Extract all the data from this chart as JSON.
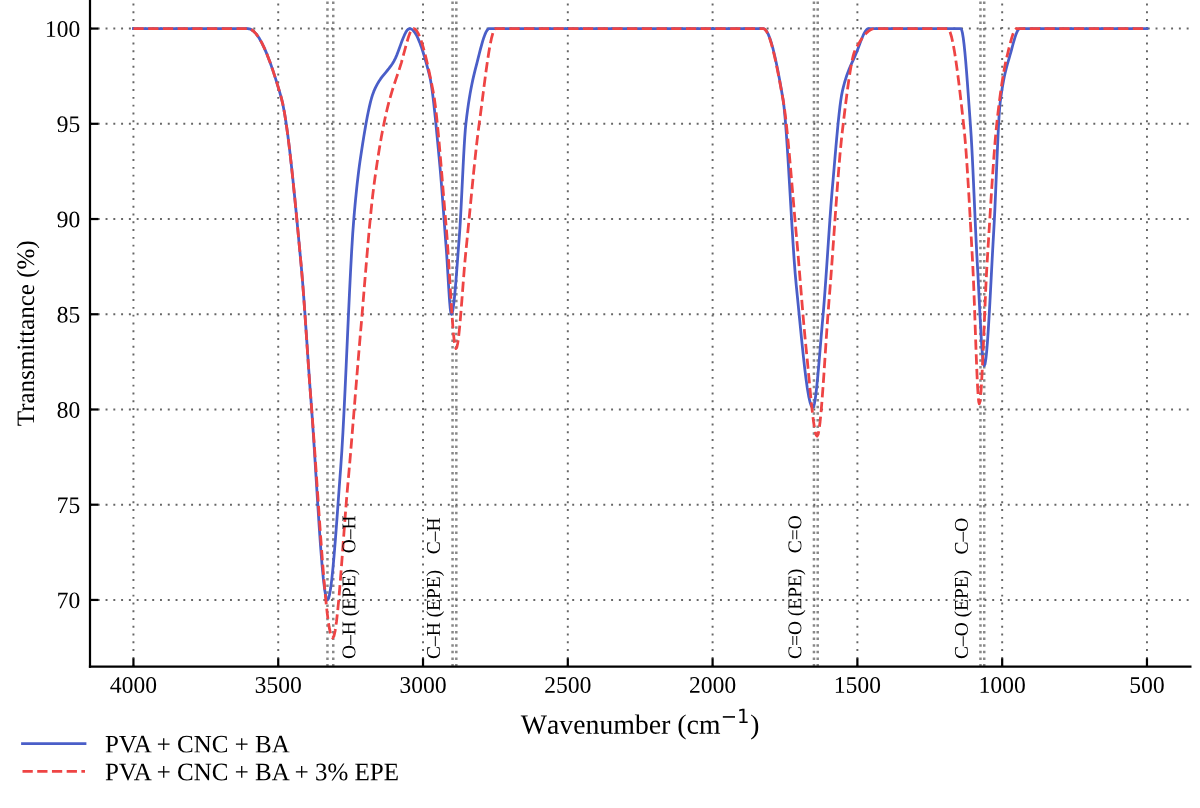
{
  "chart_data": {
    "type": "line",
    "xlabel": "Wavenumber (cm$^{−1}$)",
    "ylabel": "Transmittance (%)",
    "xlim": [
      4150,
      350
    ],
    "ylim": [
      66.5,
      101.5
    ],
    "xticks": [
      4000,
      3500,
      3000,
      2500,
      2000,
      1500,
      1000,
      500
    ],
    "yticks": [
      70,
      75,
      80,
      85,
      90,
      95,
      100
    ],
    "grid": true,
    "legend": "bottom left",
    "series": [
      {
        "name": "PVA + CNC + BA",
        "color": "#4a5ec8",
        "line_style": "solid",
        "x": [
          4000,
          3605,
          3490,
          3421,
          3387,
          3330,
          3284,
          3239,
          3216,
          3170,
          3100,
          3046,
          2977,
          2943,
          2920,
          2902,
          2875,
          2852,
          2817,
          2771,
          1825,
          1757,
          1711,
          1654,
          1620,
          1586,
          1552,
          1507,
          1461,
          1143,
          1109,
          1086,
          1062,
          1029,
          1007,
          973,
          939,
          500
        ],
        "values": [
          100,
          100,
          96.4,
          87.6,
          80.5,
          70,
          77,
          90,
          93.2,
          96.7,
          98.3,
          100,
          97.5,
          93,
          88.5,
          85,
          89,
          95,
          98,
          100,
          100,
          96.3,
          86.5,
          80.1,
          84.7,
          91.7,
          96.7,
          98.6,
          100,
          100,
          94.8,
          87.7,
          82.3,
          89.4,
          96.1,
          98.6,
          100,
          100
        ]
      },
      {
        "name": "PVA + CNC + BA + 3% EPE",
        "color": "#ee4444",
        "line_style": "dashed",
        "x": [
          4000,
          3605,
          3490,
          3421,
          3387,
          3312,
          3260,
          3216,
          3170,
          3125,
          3079,
          3033,
          2965,
          2920,
          2886,
          2852,
          2806,
          2749,
          1825,
          1757,
          1711,
          1677,
          1639,
          1598,
          1552,
          1507,
          1439,
          1189,
          1132,
          1102,
          1079,
          1052,
          1018,
          984,
          950,
          500
        ],
        "values": [
          100,
          100,
          96.4,
          87.6,
          80.5,
          68,
          76,
          84,
          91.7,
          95.7,
          98,
          100,
          96.7,
          89.6,
          83.2,
          88.3,
          95,
          100,
          100,
          96.3,
          89.2,
          83.2,
          78.6,
          85.7,
          94.6,
          98.9,
          100,
          100,
          94.8,
          87.7,
          80.3,
          87.7,
          95.1,
          98.5,
          100,
          100
        ]
      }
    ],
    "ref_lines": [
      {
        "axis": "x",
        "value": 3330,
        "label": "O–H (EPE)",
        "color": "#888888",
        "line_style": "dotted"
      },
      {
        "axis": "x",
        "value": 3310,
        "label": "O–H",
        "color": "#888888",
        "line_style": "dotted"
      },
      {
        "axis": "x",
        "value": 2898,
        "label": "C–H (EPE)",
        "color": "#888888",
        "line_style": "dotted"
      },
      {
        "axis": "x",
        "value": 2885,
        "label": "C–H",
        "color": "#888888",
        "line_style": "dotted"
      },
      {
        "axis": "x",
        "value": 1650,
        "label": "C=O (EPE)",
        "color": "#888888",
        "line_style": "dotted"
      },
      {
        "axis": "x",
        "value": 1637,
        "label": "C=O",
        "color": "#888888",
        "line_style": "dotted"
      },
      {
        "axis": "x",
        "value": 1075,
        "label": "C–O (EPE)",
        "color": "#888888",
        "line_style": "dotted"
      },
      {
        "axis": "x",
        "value": 1062,
        "label": "C–O",
        "color": "#888888",
        "line_style": "dotted"
      }
    ]
  }
}
